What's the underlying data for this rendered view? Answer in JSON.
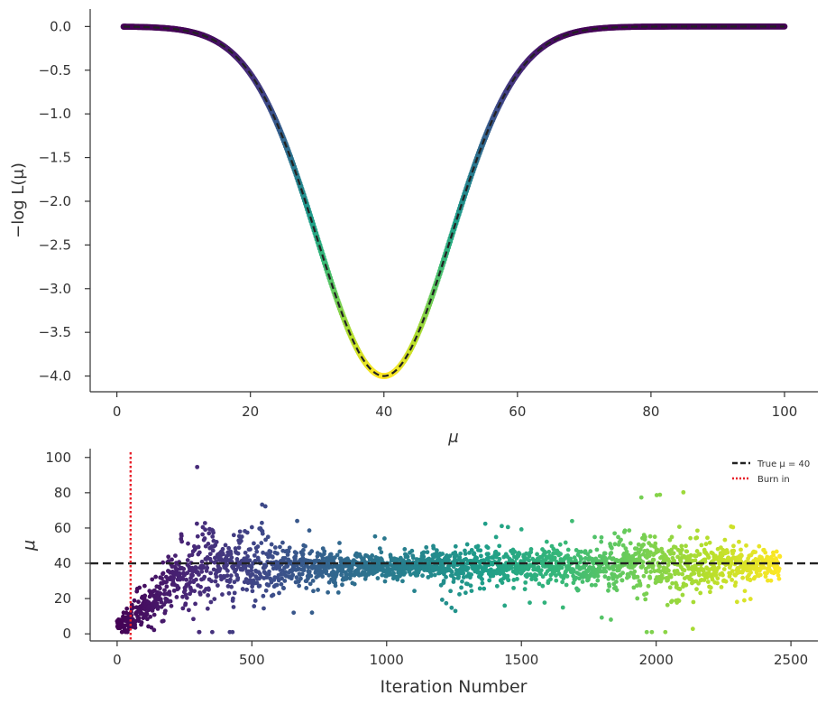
{
  "chart_data": [
    {
      "type": "scatter",
      "panel": "top",
      "xlabel": "μ",
      "ylabel": "−log L(μ)",
      "xlim": [
        -4,
        105
      ],
      "ylim": [
        -4.18,
        0.2
      ],
      "xticks": [
        0,
        20,
        40,
        60,
        80,
        100
      ],
      "xtick_labels": [
        "0",
        "20",
        "40",
        "60",
        "80",
        "100"
      ],
      "yticks": [
        0.0,
        -0.5,
        -1.0,
        -1.5,
        -2.0,
        -2.5,
        -3.0,
        -3.5,
        -4.0
      ],
      "ytick_labels": [
        "0.0",
        "−0.5",
        "−1.0",
        "−1.5",
        "−2.0",
        "−2.5",
        "−3.0",
        "−3.5",
        "−4.0"
      ],
      "curve": {
        "function": "-4 * exp(-(mu-40)^2 / (2 * 10^2))",
        "mu_range": [
          1,
          100
        ],
        "style": "dashed",
        "color": "#222222"
      },
      "points": {
        "description_free": true,
        "mu_range": [
          1,
          100
        ],
        "colormap": "viridis"
      },
      "grid": false
    },
    {
      "type": "scatter",
      "panel": "bottom",
      "xlabel": "Iteration Number",
      "ylabel": "μ",
      "xlim": [
        -100,
        2600
      ],
      "ylim": [
        -4,
        105
      ],
      "xticks": [
        0,
        500,
        1000,
        1500,
        2000,
        2500
      ],
      "xtick_labels": [
        "0",
        "500",
        "1000",
        "1500",
        "2000",
        "2500"
      ],
      "yticks": [
        0,
        20,
        40,
        60,
        80,
        100
      ],
      "ytick_labels": [
        "0",
        "20",
        "40",
        "60",
        "80",
        "100"
      ],
      "n_iterations": 2460,
      "true_value": 40,
      "burn_in": 50,
      "colormap": "viridis",
      "legend": {
        "placement": "top-right",
        "entries": [
          {
            "label": "True μ = 40",
            "style": "dashed",
            "color": "#222222"
          },
          {
            "label": "Burn in",
            "style": "dotted",
            "color": "#e8202a"
          }
        ]
      },
      "grid": false
    }
  ]
}
